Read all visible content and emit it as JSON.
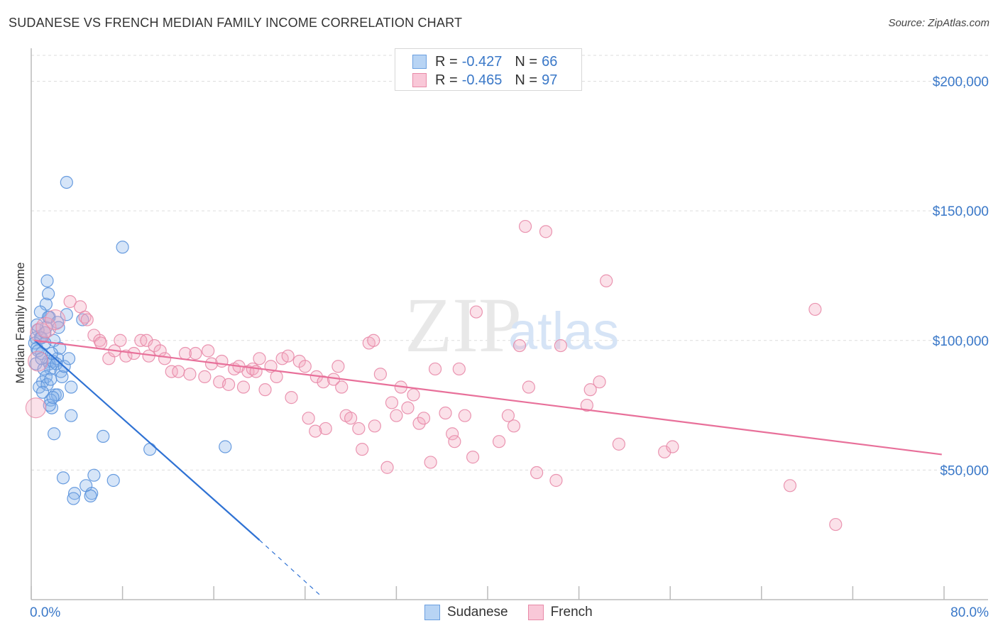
{
  "header": {
    "title": "SUDANESE VS FRENCH MEDIAN FAMILY INCOME CORRELATION CHART",
    "source": "Source: ZipAtlas.com"
  },
  "watermark": {
    "zip": "ZIP",
    "atlas": "atlas"
  },
  "legend": {
    "rows": [
      {
        "r_label": "R =",
        "r_value": "-0.427",
        "n_label": "N =",
        "n_value": "66",
        "color": "#a8c8f0",
        "border": "#6a9fe0"
      },
      {
        "r_label": "R =",
        "r_value": "-0.465",
        "n_label": "N =",
        "n_value": "97",
        "color": "#f8c0d0",
        "border": "#e88aa8"
      }
    ]
  },
  "bottom_legend": [
    {
      "label": "Sudanese",
      "color": "#a8c8f0",
      "border": "#6a9fe0"
    },
    {
      "label": "French",
      "color": "#f8c0d0",
      "border": "#e88aa8"
    }
  ],
  "chart_data": {
    "type": "scatter",
    "title": "SUDANESE VS FRENCH MEDIAN FAMILY INCOME CORRELATION CHART",
    "xlabel": "",
    "ylabel": "Median Family Income",
    "xlim": [
      0,
      80
    ],
    "ylim": [
      0,
      210000
    ],
    "x_tick_labels": [
      "0.0%",
      "80.0%"
    ],
    "y_ticks": [
      50000,
      100000,
      150000,
      200000
    ],
    "y_tick_labels": [
      "$50,000",
      "$100,000",
      "$150,000",
      "$200,000"
    ],
    "series": [
      {
        "name": "Sudanese",
        "color": "#8ab4ec",
        "stroke": "#5a92dc",
        "trend_color": "#2f72d4",
        "trend": {
          "x0": 0.3,
          "y0": 100000,
          "x1": 20.0,
          "y1": 23000,
          "dash_to_x": 25.5,
          "dash_to_y": 1000
        },
        "points": [
          [
            1.3,
            114000
          ],
          [
            1.6,
            109000
          ],
          [
            1.3,
            105000
          ],
          [
            0.6,
            104000
          ],
          [
            0.4,
            101000
          ],
          [
            0.8,
            101000
          ],
          [
            0.9,
            101000
          ],
          [
            0.3,
            99000
          ],
          [
            0.5,
            97000
          ],
          [
            0.9,
            95000
          ],
          [
            0.4,
            91000
          ],
          [
            1.5,
            92000
          ],
          [
            1.6,
            91000
          ],
          [
            1.9,
            92000
          ],
          [
            2.3,
            93000
          ],
          [
            1.7,
            89000
          ],
          [
            1.1,
            89000
          ],
          [
            1.3,
            86000
          ],
          [
            1.0,
            84000
          ],
          [
            0.7,
            82000
          ],
          [
            1.4,
            83000
          ],
          [
            2.1,
            79000
          ],
          [
            2.3,
            79000
          ],
          [
            1.7,
            77000
          ],
          [
            1.8,
            74000
          ],
          [
            1.6,
            75000
          ],
          [
            3.5,
            82000
          ],
          [
            3.5,
            71000
          ],
          [
            1.4,
            123000
          ],
          [
            1.5,
            118000
          ],
          [
            0.8,
            111000
          ],
          [
            1.5,
            109000
          ],
          [
            2.3,
            107000
          ],
          [
            2.4,
            105000
          ],
          [
            3.1,
            110000
          ],
          [
            4.5,
            108000
          ],
          [
            3.1,
            161000
          ],
          [
            8.0,
            136000
          ],
          [
            1.7,
            85000
          ],
          [
            2.2,
            91000
          ],
          [
            2.0,
            64000
          ],
          [
            6.3,
            63000
          ],
          [
            10.4,
            58000
          ],
          [
            17.0,
            59000
          ],
          [
            2.8,
            47000
          ],
          [
            5.5,
            48000
          ],
          [
            7.2,
            46000
          ],
          [
            4.8,
            44000
          ],
          [
            3.8,
            41000
          ],
          [
            5.3,
            41000
          ],
          [
            3.7,
            39000
          ],
          [
            5.2,
            40000
          ],
          [
            0.6,
            96000
          ],
          [
            2.6,
            88000
          ],
          [
            1.9,
            78000
          ],
          [
            1.0,
            80000
          ],
          [
            2.7,
            86000
          ],
          [
            1.2,
            103000
          ],
          [
            0.5,
            106000
          ],
          [
            2.0,
            100000
          ],
          [
            2.5,
            97000
          ],
          [
            1.8,
            95000
          ],
          [
            0.9,
            93000
          ],
          [
            2.9,
            90000
          ],
          [
            3.3,
            93000
          ],
          [
            1.2,
            99000
          ]
        ],
        "big_points": []
      },
      {
        "name": "French",
        "color": "#f4a8c0",
        "stroke": "#e88aa8",
        "trend_color": "#e8709a",
        "trend": {
          "x0": 0.3,
          "y0": 100000,
          "x1": 79.8,
          "y1": 56000
        },
        "points": [
          [
            3.4,
            115000
          ],
          [
            4.3,
            113000
          ],
          [
            4.7,
            109000
          ],
          [
            4.9,
            108000
          ],
          [
            5.5,
            102000
          ],
          [
            6.0,
            100000
          ],
          [
            6.1,
            99000
          ],
          [
            6.8,
            93000
          ],
          [
            7.3,
            96000
          ],
          [
            7.8,
            100000
          ],
          [
            8.3,
            94000
          ],
          [
            9.0,
            95000
          ],
          [
            9.6,
            100000
          ],
          [
            10.1,
            100000
          ],
          [
            10.3,
            94000
          ],
          [
            10.8,
            98000
          ],
          [
            11.3,
            96000
          ],
          [
            11.7,
            93000
          ],
          [
            12.3,
            88000
          ],
          [
            12.9,
            88000
          ],
          [
            13.5,
            95000
          ],
          [
            13.9,
            87000
          ],
          [
            14.4,
            95000
          ],
          [
            15.2,
            86000
          ],
          [
            15.5,
            96000
          ],
          [
            15.8,
            91000
          ],
          [
            16.5,
            84000
          ],
          [
            16.7,
            92000
          ],
          [
            17.3,
            83000
          ],
          [
            17.8,
            89000
          ],
          [
            18.2,
            90000
          ],
          [
            18.6,
            82000
          ],
          [
            19.0,
            88000
          ],
          [
            19.4,
            89000
          ],
          [
            20.0,
            93000
          ],
          [
            20.5,
            81000
          ],
          [
            21.0,
            90000
          ],
          [
            21.5,
            86000
          ],
          [
            22.0,
            93000
          ],
          [
            22.5,
            94000
          ],
          [
            22.8,
            78000
          ],
          [
            23.5,
            92000
          ],
          [
            24.0,
            90000
          ],
          [
            24.3,
            70000
          ],
          [
            25.0,
            86000
          ],
          [
            25.6,
            84000
          ],
          [
            25.8,
            66000
          ],
          [
            26.5,
            85000
          ],
          [
            27.2,
            82000
          ],
          [
            27.6,
            71000
          ],
          [
            28.0,
            70000
          ],
          [
            28.7,
            66000
          ],
          [
            29.0,
            58000
          ],
          [
            29.6,
            99000
          ],
          [
            30.0,
            100000
          ],
          [
            30.6,
            87000
          ],
          [
            31.2,
            51000
          ],
          [
            31.6,
            76000
          ],
          [
            32.0,
            71000
          ],
          [
            32.4,
            82000
          ],
          [
            33.0,
            74000
          ],
          [
            33.5,
            79000
          ],
          [
            34.0,
            68000
          ],
          [
            34.4,
            70000
          ],
          [
            35.0,
            53000
          ],
          [
            35.4,
            89000
          ],
          [
            36.3,
            72000
          ],
          [
            36.9,
            64000
          ],
          [
            37.5,
            89000
          ],
          [
            38.7,
            55000
          ],
          [
            41.0,
            61000
          ],
          [
            41.8,
            71000
          ],
          [
            42.3,
            67000
          ],
          [
            42.8,
            98000
          ],
          [
            43.3,
            144000
          ],
          [
            43.6,
            82000
          ],
          [
            44.3,
            49000
          ],
          [
            45.1,
            142000
          ],
          [
            46.0,
            46000
          ],
          [
            49.0,
            81000
          ],
          [
            49.8,
            84000
          ],
          [
            50.4,
            123000
          ],
          [
            51.5,
            60000
          ],
          [
            55.5,
            57000
          ],
          [
            56.2,
            59000
          ],
          [
            66.5,
            44000
          ],
          [
            68.7,
            112000
          ],
          [
            70.5,
            29000
          ],
          [
            39.0,
            111000
          ],
          [
            38.0,
            71000
          ],
          [
            24.9,
            65000
          ],
          [
            26.9,
            90000
          ],
          [
            30.1,
            67000
          ],
          [
            46.4,
            98000
          ],
          [
            48.7,
            75000
          ],
          [
            19.7,
            88000
          ],
          [
            37.1,
            61000
          ]
        ],
        "big_points": [
          [
            0.8,
            103000
          ],
          [
            0.6,
            92000
          ],
          [
            0.4,
            74000
          ],
          [
            1.3,
            105000
          ],
          [
            2.1,
            108000
          ]
        ]
      }
    ]
  }
}
